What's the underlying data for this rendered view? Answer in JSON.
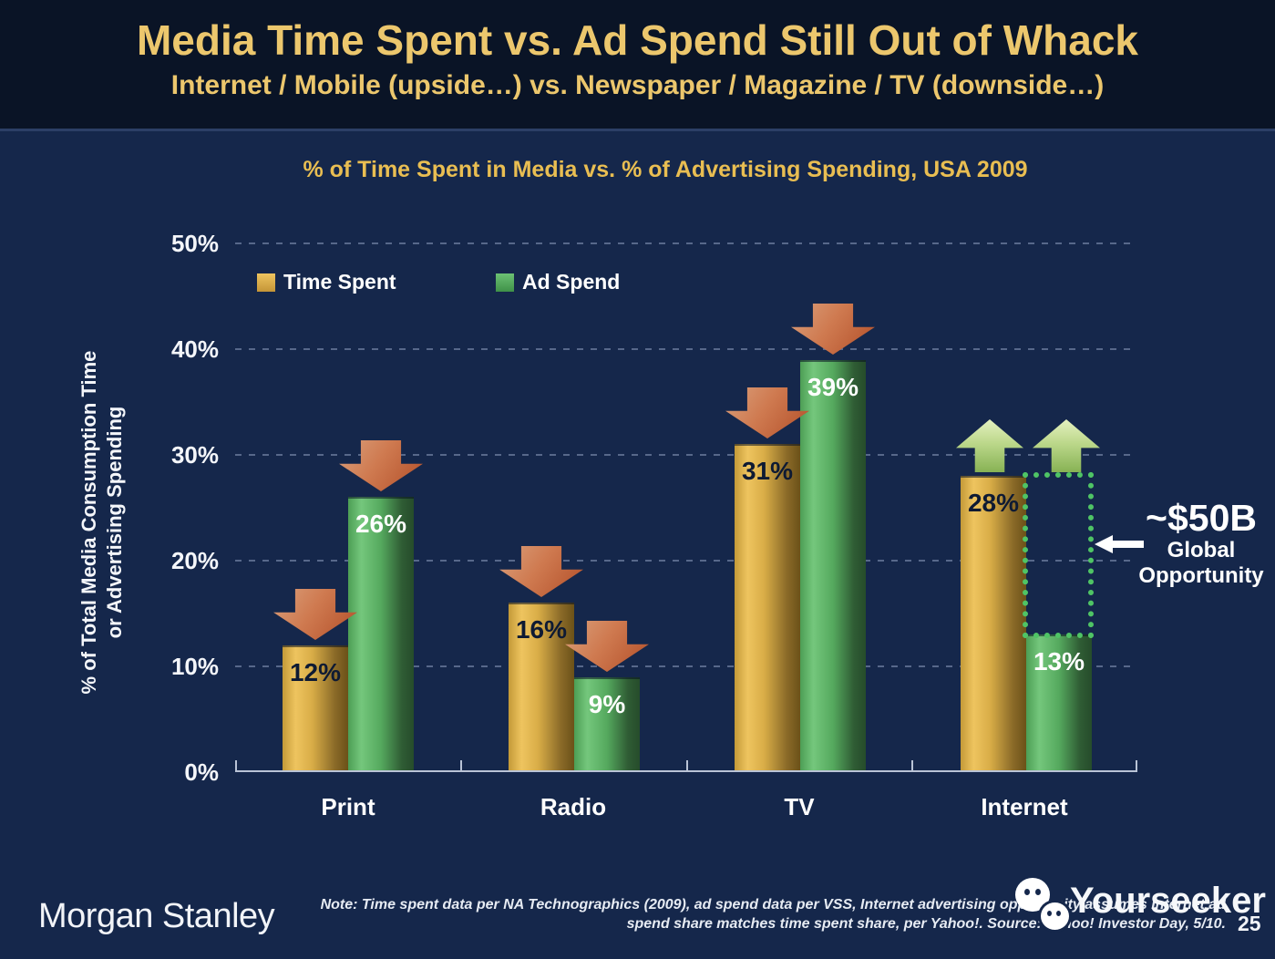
{
  "slide": {
    "title": "Media Time Spent vs. Ad Spend Still Out of Whack",
    "subtitle": "Internet / Mobile (upside…) vs. Newspaper / Magazine / TV (downside…)",
    "brand": "Morgan Stanley",
    "note_line1": "Note: Time spent data per NA Technographics (2009), ad spend data per VSS, Internet advertising opportunity assumes Internet ad",
    "note_line2": "spend share matches time spent share, per Yahoo!. Source: Yahoo! Investor Day, 5/10.",
    "page_number": "25",
    "watermark": "Yourseeker"
  },
  "chart_data": {
    "type": "bar",
    "title": "% of Time Spent in Media vs. % of Advertising Spending, USA 2009",
    "categories": [
      "Print",
      "Radio",
      "TV",
      "Internet"
    ],
    "series": [
      {
        "name": "Time Spent",
        "color": "#dfb24b",
        "values": [
          12,
          16,
          31,
          28
        ],
        "labels": [
          "12%",
          "16%",
          "31%",
          "28%"
        ]
      },
      {
        "name": "Ad Spend",
        "color": "#56ad5e",
        "values": [
          26,
          9,
          39,
          13
        ],
        "labels": [
          "26%",
          "9%",
          "39%",
          "13%"
        ]
      }
    ],
    "ylabel_line1": "% of Total Media Consumption Time",
    "ylabel_line2": "or Advertising Spending",
    "yticks": [
      "0%",
      "10%",
      "20%",
      "30%",
      "40%",
      "50%"
    ],
    "ylim": [
      0,
      50
    ],
    "grid": "dashed horizontal gridlines every 10%",
    "legend_position": "top-left inside plot",
    "annotations": {
      "down_arrows_on": [
        "Print Time Spent",
        "Print Ad Spend",
        "Radio Time Spent",
        "Radio Ad Spend",
        "TV Time Spent",
        "TV Ad Spend"
      ],
      "up_arrows_on": [
        "Internet"
      ],
      "gap_box": "dotted box from Internet Ad Spend 13% up to 28%",
      "amount": "~$50B",
      "label_line1": "Global",
      "label_line2": "Opportunity"
    },
    "colors": {
      "background": "#15274b",
      "header_background": "#0a1426",
      "title_gold": "#ecc76d",
      "bar_gold": "#dfb24b",
      "bar_green": "#56ad5e",
      "down_arrow": "#c06238",
      "up_arrow": "#a9cc74",
      "gap_box_green": "#4fc465"
    }
  }
}
